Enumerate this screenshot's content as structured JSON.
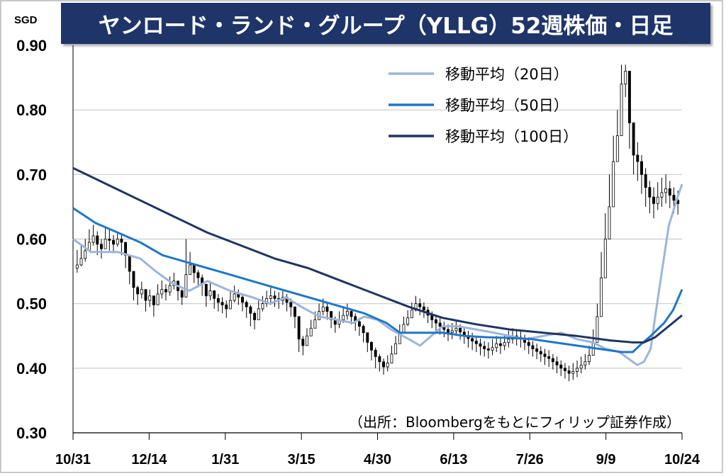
{
  "chart_data": {
    "type": "candlestick-line",
    "title": "ヤンロード・ランド・グループ（YLLG）52週株価・日足",
    "unit_label": "SGD",
    "source": "（出所：Bloombergをもとにフィリップ証券作成）",
    "ylim": [
      0.3,
      0.9
    ],
    "y_ticks": [
      "0.90",
      "0.80",
      "0.70",
      "0.60",
      "0.50",
      "0.40",
      "0.30"
    ],
    "x_ticks": [
      "10/31",
      "12/14",
      "1/31",
      "3/15",
      "4/30",
      "6/13",
      "7/26",
      "9/9",
      "10/24"
    ],
    "grid": true,
    "legend_position": "top-right",
    "colors": {
      "ma20": "#9db5da",
      "ma50": "#1f77c8",
      "ma100": "#1f3560",
      "candle": "#000000",
      "title_bg": "#1f3569"
    },
    "series": [
      {
        "name": "移動平均（20日）",
        "points": [
          [
            0,
            0.6
          ],
          [
            8,
            0.58
          ],
          [
            20,
            0.58
          ],
          [
            30,
            0.57
          ],
          [
            37,
            0.55
          ],
          [
            45,
            0.53
          ],
          [
            52,
            0.52
          ],
          [
            60,
            0.535
          ],
          [
            70,
            0.52
          ],
          [
            80,
            0.51
          ],
          [
            88,
            0.5
          ],
          [
            95,
            0.51
          ],
          [
            102,
            0.495
          ],
          [
            110,
            0.48
          ],
          [
            118,
            0.475
          ],
          [
            125,
            0.47
          ],
          [
            130,
            0.48
          ],
          [
            136,
            0.475
          ],
          [
            142,
            0.46
          ],
          [
            150,
            0.445
          ],
          [
            155,
            0.435
          ],
          [
            160,
            0.45
          ],
          [
            165,
            0.465
          ],
          [
            172,
            0.465
          ],
          [
            180,
            0.46
          ],
          [
            188,
            0.455
          ],
          [
            195,
            0.45
          ],
          [
            202,
            0.445
          ],
          [
            210,
            0.45
          ],
          [
            218,
            0.455
          ],
          [
            225,
            0.445
          ],
          [
            232,
            0.44
          ],
          [
            238,
            0.43
          ],
          [
            244,
            0.425
          ],
          [
            248,
            0.415
          ],
          [
            252,
            0.405
          ],
          [
            255,
            0.41
          ],
          [
            258,
            0.43
          ],
          [
            260,
            0.48
          ],
          [
            263,
            0.55
          ],
          [
            266,
            0.62
          ],
          [
            270,
            0.665
          ],
          [
            272,
            0.685
          ]
        ]
      },
      {
        "name": "移動平均（50日）",
        "points": [
          [
            0,
            0.648
          ],
          [
            10,
            0.625
          ],
          [
            20,
            0.61
          ],
          [
            30,
            0.595
          ],
          [
            40,
            0.575
          ],
          [
            50,
            0.565
          ],
          [
            60,
            0.555
          ],
          [
            70,
            0.545
          ],
          [
            80,
            0.535
          ],
          [
            90,
            0.525
          ],
          [
            100,
            0.515
          ],
          [
            110,
            0.505
          ],
          [
            120,
            0.495
          ],
          [
            130,
            0.485
          ],
          [
            140,
            0.47
          ],
          [
            146,
            0.455
          ],
          [
            155,
            0.455
          ],
          [
            165,
            0.455
          ],
          [
            175,
            0.45
          ],
          [
            185,
            0.448
          ],
          [
            195,
            0.447
          ],
          [
            205,
            0.445
          ],
          [
            215,
            0.44
          ],
          [
            225,
            0.435
          ],
          [
            235,
            0.43
          ],
          [
            245,
            0.425
          ],
          [
            250,
            0.425
          ],
          [
            253,
            0.435
          ],
          [
            258,
            0.45
          ],
          [
            264,
            0.47
          ],
          [
            268,
            0.49
          ],
          [
            272,
            0.522
          ]
        ]
      },
      {
        "name": "移動平均（100日）",
        "points": [
          [
            0,
            0.71
          ],
          [
            15,
            0.685
          ],
          [
            30,
            0.66
          ],
          [
            45,
            0.635
          ],
          [
            60,
            0.61
          ],
          [
            75,
            0.59
          ],
          [
            90,
            0.57
          ],
          [
            105,
            0.555
          ],
          [
            120,
            0.535
          ],
          [
            135,
            0.515
          ],
          [
            150,
            0.495
          ],
          [
            165,
            0.478
          ],
          [
            180,
            0.468
          ],
          [
            195,
            0.46
          ],
          [
            210,
            0.455
          ],
          [
            225,
            0.45
          ],
          [
            240,
            0.443
          ],
          [
            250,
            0.44
          ],
          [
            255,
            0.44
          ],
          [
            260,
            0.448
          ],
          [
            266,
            0.465
          ],
          [
            272,
            0.482
          ]
        ]
      }
    ],
    "candles": [
      [
        0.56,
        0.548,
        0.583
      ],
      [
        0.57,
        0.558,
        0.59
      ],
      [
        0.582,
        0.565,
        0.6
      ],
      [
        0.595,
        0.58,
        0.615
      ],
      [
        0.605,
        0.59,
        0.622
      ],
      [
        0.592,
        0.575,
        0.612
      ],
      [
        0.585,
        0.57,
        0.6
      ],
      [
        0.6,
        0.585,
        0.618
      ],
      [
        0.598,
        0.582,
        0.614
      ],
      [
        0.592,
        0.578,
        0.606
      ],
      [
        0.6,
        0.588,
        0.61
      ],
      [
        0.595,
        0.575,
        0.608
      ],
      [
        0.575,
        0.555,
        0.59
      ],
      [
        0.55,
        0.53,
        0.565
      ],
      [
        0.525,
        0.505,
        0.54
      ],
      [
        0.515,
        0.498,
        0.528
      ],
      [
        0.522,
        0.508,
        0.534
      ],
      [
        0.505,
        0.488,
        0.52
      ],
      [
        0.512,
        0.495,
        0.522
      ],
      [
        0.498,
        0.48,
        0.512
      ],
      [
        0.515,
        0.5,
        0.53
      ],
      [
        0.522,
        0.508,
        0.536
      ],
      [
        0.518,
        0.505,
        0.53
      ],
      [
        0.528,
        0.512,
        0.542
      ],
      [
        0.535,
        0.522,
        0.548
      ],
      [
        0.52,
        0.505,
        0.532
      ],
      [
        0.51,
        0.498,
        0.522
      ],
      [
        0.545,
        0.525,
        0.6
      ],
      [
        0.56,
        0.545,
        0.58
      ],
      [
        0.548,
        0.532,
        0.562
      ],
      [
        0.54,
        0.525,
        0.552
      ],
      [
        0.53,
        0.512,
        0.545
      ],
      [
        0.512,
        0.495,
        0.528
      ],
      [
        0.52,
        0.505,
        0.535
      ],
      [
        0.508,
        0.492,
        0.52
      ],
      [
        0.502,
        0.488,
        0.515
      ],
      [
        0.498,
        0.485,
        0.51
      ],
      [
        0.492,
        0.478,
        0.505
      ],
      [
        0.505,
        0.492,
        0.518
      ],
      [
        0.515,
        0.502,
        0.528
      ],
      [
        0.51,
        0.498,
        0.522
      ],
      [
        0.502,
        0.488,
        0.515
      ],
      [
        0.495,
        0.478,
        0.505
      ],
      [
        0.485,
        0.465,
        0.498
      ],
      [
        0.475,
        0.46,
        0.488
      ],
      [
        0.492,
        0.48,
        0.505
      ],
      [
        0.5,
        0.488,
        0.512
      ],
      [
        0.508,
        0.495,
        0.52
      ],
      [
        0.512,
        0.498,
        0.525
      ],
      [
        0.508,
        0.495,
        0.52
      ],
      [
        0.505,
        0.492,
        0.518
      ],
      [
        0.51,
        0.498,
        0.522
      ],
      [
        0.502,
        0.488,
        0.515
      ],
      [
        0.495,
        0.48,
        0.508
      ],
      [
        0.48,
        0.462,
        0.495
      ],
      [
        0.445,
        0.425,
        0.465
      ],
      [
        0.435,
        0.42,
        0.45
      ],
      [
        0.45,
        0.438,
        0.462
      ],
      [
        0.462,
        0.45,
        0.475
      ],
      [
        0.475,
        0.462,
        0.488
      ],
      [
        0.488,
        0.475,
        0.5
      ],
      [
        0.495,
        0.482,
        0.508
      ],
      [
        0.488,
        0.475,
        0.5
      ],
      [
        0.475,
        0.462,
        0.488
      ],
      [
        0.468,
        0.455,
        0.48
      ],
      [
        0.475,
        0.462,
        0.488
      ],
      [
        0.482,
        0.47,
        0.495
      ],
      [
        0.488,
        0.475,
        0.5
      ],
      [
        0.48,
        0.468,
        0.492
      ],
      [
        0.472,
        0.458,
        0.485
      ],
      [
        0.465,
        0.45,
        0.478
      ],
      [
        0.455,
        0.44,
        0.468
      ],
      [
        0.44,
        0.425,
        0.455
      ],
      [
        0.428,
        0.412,
        0.442
      ],
      [
        0.418,
        0.4,
        0.432
      ],
      [
        0.41,
        0.395,
        0.422
      ],
      [
        0.402,
        0.39,
        0.415
      ],
      [
        0.408,
        0.395,
        0.42
      ],
      [
        0.422,
        0.408,
        0.435
      ],
      [
        0.438,
        0.422,
        0.45
      ],
      [
        0.455,
        0.44,
        0.468
      ],
      [
        0.468,
        0.455,
        0.48
      ],
      [
        0.478,
        0.465,
        0.49
      ],
      [
        0.49,
        0.478,
        0.502
      ],
      [
        0.5,
        0.488,
        0.512
      ],
      [
        0.495,
        0.482,
        0.508
      ],
      [
        0.49,
        0.478,
        0.502
      ],
      [
        0.482,
        0.47,
        0.495
      ],
      [
        0.475,
        0.462,
        0.488
      ],
      [
        0.47,
        0.458,
        0.482
      ],
      [
        0.465,
        0.452,
        0.478
      ],
      [
        0.46,
        0.448,
        0.472
      ],
      [
        0.455,
        0.442,
        0.468
      ],
      [
        0.458,
        0.445,
        0.47
      ],
      [
        0.462,
        0.45,
        0.475
      ],
      [
        0.456,
        0.444,
        0.468
      ],
      [
        0.45,
        0.438,
        0.462
      ],
      [
        0.446,
        0.432,
        0.458
      ],
      [
        0.442,
        0.428,
        0.455
      ],
      [
        0.438,
        0.425,
        0.45
      ],
      [
        0.434,
        0.42,
        0.446
      ],
      [
        0.43,
        0.418,
        0.442
      ],
      [
        0.428,
        0.415,
        0.44
      ],
      [
        0.432,
        0.42,
        0.445
      ],
      [
        0.438,
        0.425,
        0.45
      ],
      [
        0.435,
        0.422,
        0.448
      ],
      [
        0.44,
        0.428,
        0.452
      ],
      [
        0.445,
        0.432,
        0.458
      ],
      [
        0.45,
        0.438,
        0.462
      ],
      [
        0.448,
        0.435,
        0.46
      ],
      [
        0.445,
        0.432,
        0.458
      ],
      [
        0.44,
        0.428,
        0.452
      ],
      [
        0.435,
        0.422,
        0.448
      ],
      [
        0.43,
        0.418,
        0.442
      ],
      [
        0.426,
        0.414,
        0.438
      ],
      [
        0.422,
        0.41,
        0.434
      ],
      [
        0.418,
        0.405,
        0.43
      ],
      [
        0.415,
        0.402,
        0.428
      ],
      [
        0.41,
        0.398,
        0.422
      ],
      [
        0.405,
        0.392,
        0.418
      ],
      [
        0.4,
        0.388,
        0.412
      ],
      [
        0.396,
        0.384,
        0.408
      ],
      [
        0.392,
        0.38,
        0.404
      ],
      [
        0.395,
        0.382,
        0.408
      ],
      [
        0.4,
        0.386,
        0.412
      ],
      [
        0.405,
        0.392,
        0.418
      ],
      [
        0.41,
        0.398,
        0.422
      ],
      [
        0.42,
        0.405,
        0.435
      ],
      [
        0.44,
        0.42,
        0.46
      ],
      [
        0.48,
        0.45,
        0.5
      ],
      [
        0.54,
        0.5,
        0.58
      ],
      [
        0.6,
        0.56,
        0.64
      ],
      [
        0.65,
        0.61,
        0.7
      ],
      [
        0.72,
        0.68,
        0.76
      ],
      [
        0.76,
        0.72,
        0.8
      ],
      [
        0.84,
        0.78,
        0.87
      ],
      [
        0.86,
        0.82,
        0.87
      ],
      [
        0.78,
        0.74,
        0.82
      ],
      [
        0.73,
        0.7,
        0.76
      ],
      [
        0.72,
        0.69,
        0.75
      ],
      [
        0.7,
        0.67,
        0.73
      ],
      [
        0.68,
        0.65,
        0.71
      ],
      [
        0.665,
        0.64,
        0.69
      ],
      [
        0.655,
        0.632,
        0.68
      ],
      [
        0.665,
        0.645,
        0.688
      ],
      [
        0.672,
        0.65,
        0.695
      ],
      [
        0.678,
        0.655,
        0.7
      ],
      [
        0.668,
        0.648,
        0.69
      ],
      [
        0.66,
        0.64,
        0.68
      ],
      [
        0.655,
        0.638,
        0.675
      ]
    ]
  }
}
